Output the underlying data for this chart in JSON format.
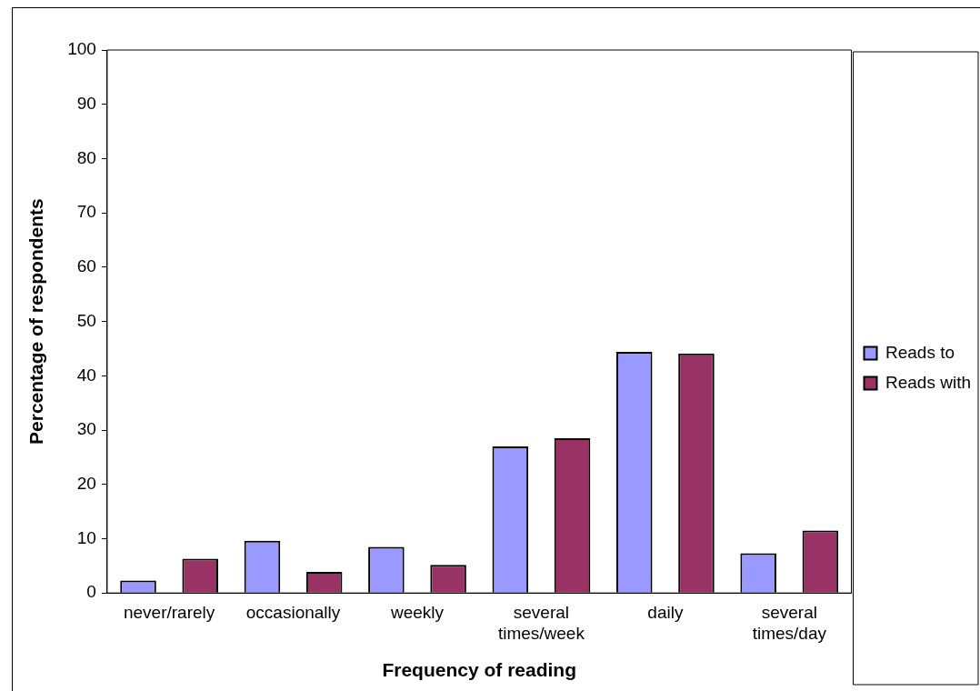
{
  "chart_data": {
    "type": "bar",
    "xlabel": "Frequency of reading",
    "ylabel": "Percentage of respondents",
    "categories": [
      "never/rarely",
      "occasionally",
      "weekly",
      "several times/week",
      "daily",
      "several times/day"
    ],
    "series": [
      {
        "name": "Reads to",
        "color": "#9999ff",
        "values": [
          2.3,
          9.6,
          8.5,
          27.0,
          44.4,
          7.3
        ]
      },
      {
        "name": "Reads with",
        "color": "#993366",
        "values": [
          6.3,
          3.9,
          5.2,
          28.5,
          44.1,
          11.5
        ]
      }
    ],
    "ylim": [
      0,
      100
    ],
    "yticks": [
      0,
      10,
      20,
      30,
      40,
      50,
      60,
      70,
      80,
      90,
      100
    ],
    "grid": false,
    "legend": "right"
  }
}
